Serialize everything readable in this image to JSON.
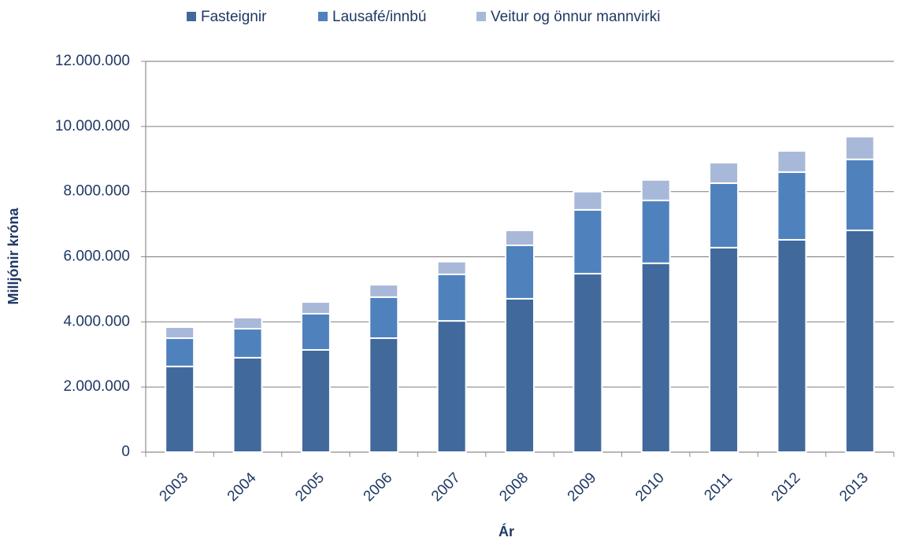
{
  "chart_data": {
    "type": "stacked-bar",
    "x_label": "Ár",
    "y_label": "Milljónir króna",
    "categories": [
      "2003",
      "2004",
      "2005",
      "2006",
      "2007",
      "2008",
      "2009",
      "2010",
      "2011",
      "2012",
      "2013"
    ],
    "series": [
      {
        "name": "Fasteignir",
        "color": "#41699c",
        "values": [
          2630000,
          2900000,
          3140000,
          3500000,
          4030000,
          4710000,
          5480000,
          5800000,
          6280000,
          6520000,
          6810000
        ]
      },
      {
        "name": "Lausafé/innbú",
        "color": "#4f81bd",
        "values": [
          870000,
          890000,
          1110000,
          1260000,
          1430000,
          1640000,
          1960000,
          1930000,
          1980000,
          2080000,
          2180000
        ]
      },
      {
        "name": "Veitur og önnur mannvirki",
        "color": "#a8b8d8",
        "values": [
          340000,
          340000,
          360000,
          380000,
          390000,
          460000,
          560000,
          630000,
          630000,
          650000,
          700000
        ]
      }
    ],
    "ylim": [
      0,
      12000000
    ],
    "yticks": [
      0,
      {
        "value": 2000000,
        "label": "2.000.000"
      },
      {
        "value": 4000000,
        "label": "4.000.000"
      },
      {
        "value": 6000000,
        "label": "6.000.000"
      },
      {
        "value": 8000000,
        "label": "8.000.000"
      },
      {
        "value": 10000000,
        "label": "10.000.000"
      },
      {
        "value": 12000000,
        "label": "12.000.000"
      }
    ],
    "grid": true,
    "legend": "top"
  }
}
